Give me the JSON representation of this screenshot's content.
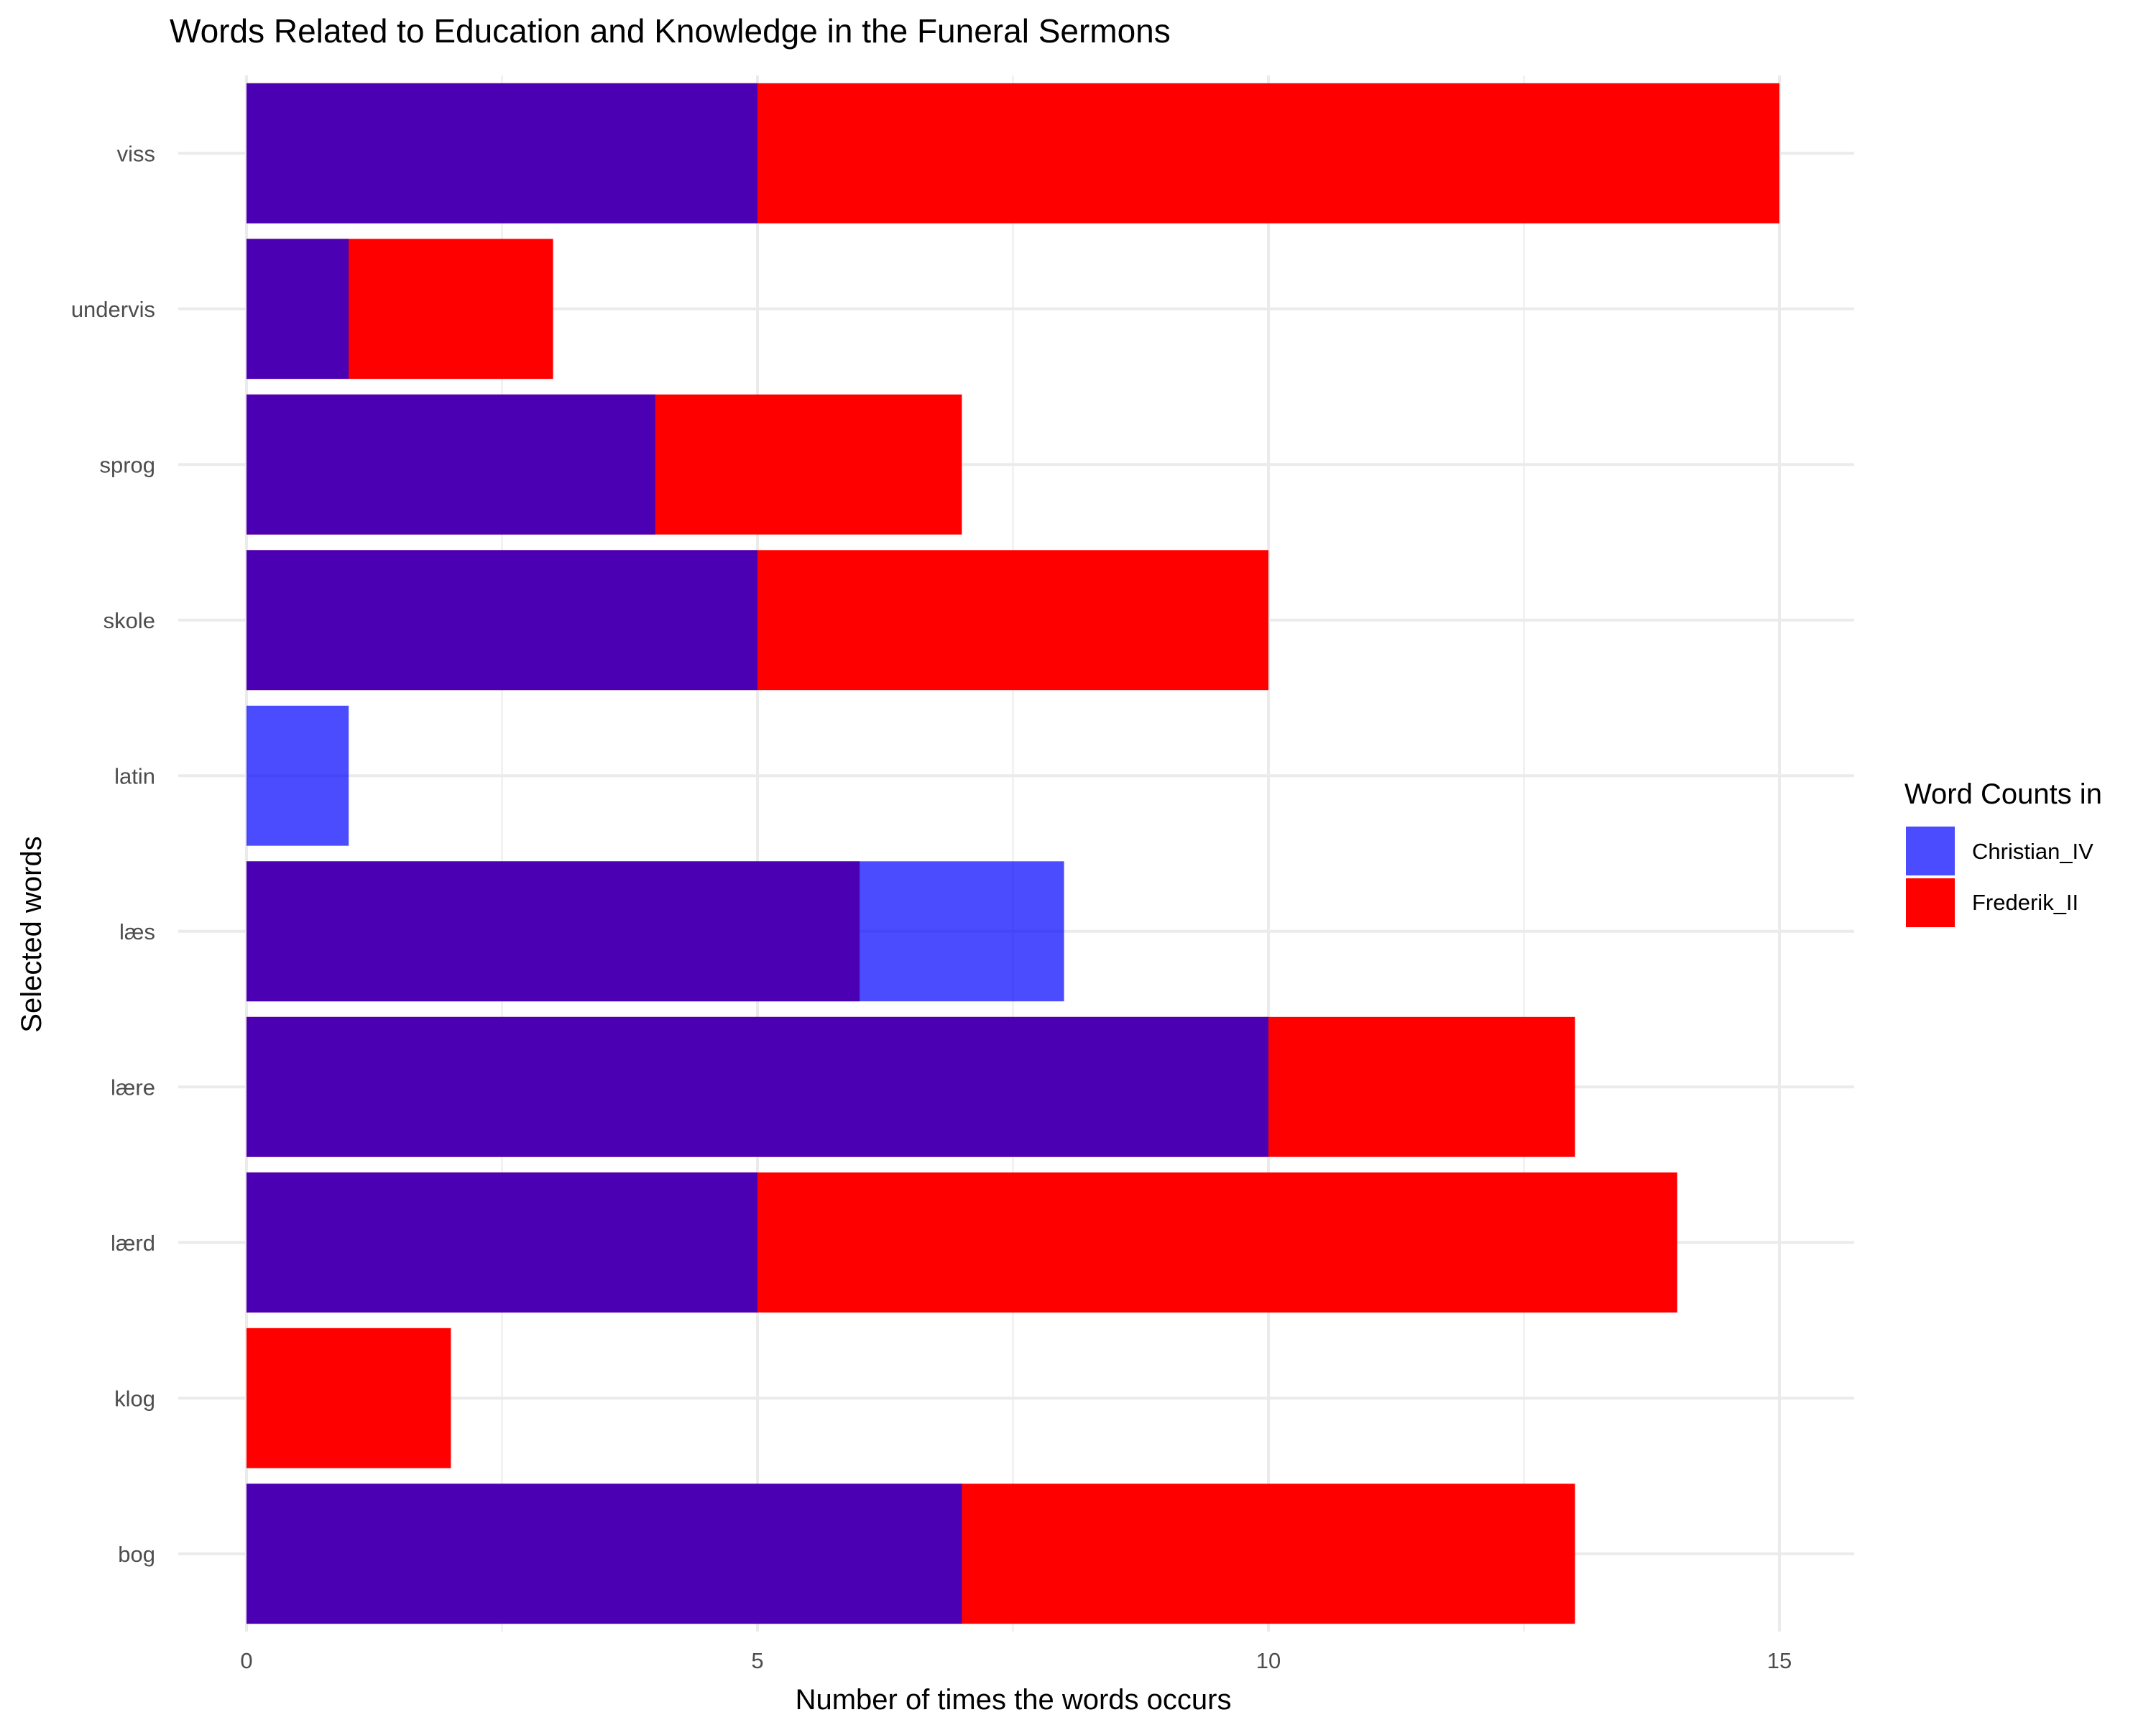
{
  "chart_data": {
    "type": "bar",
    "orientation": "horizontal",
    "title": "Words Related to Education and Knowledge in the Funeral Sermons",
    "xlabel": "Number of times the words occurs",
    "ylabel": "Selected words",
    "categories": [
      "bog",
      "klog",
      "lærd",
      "lære",
      "læs",
      "latin",
      "skole",
      "sprog",
      "undervis",
      "viss"
    ],
    "series": [
      {
        "name": "Christian_IV",
        "color": "#0000ff",
        "opacity": 0.7,
        "values": [
          7,
          0,
          5,
          10,
          8,
          1,
          5,
          4,
          1,
          5
        ]
      },
      {
        "name": "Frederik_II",
        "color": "#ff0000",
        "opacity": 1.0,
        "values": [
          13,
          2,
          14,
          13,
          6,
          0,
          10,
          7,
          3,
          15
        ]
      }
    ],
    "xlim": [
      0,
      15.7
    ],
    "xticks": [
      0,
      5,
      10,
      15
    ],
    "grid": true,
    "legend": {
      "title": "Word Counts in",
      "position": "right"
    }
  }
}
